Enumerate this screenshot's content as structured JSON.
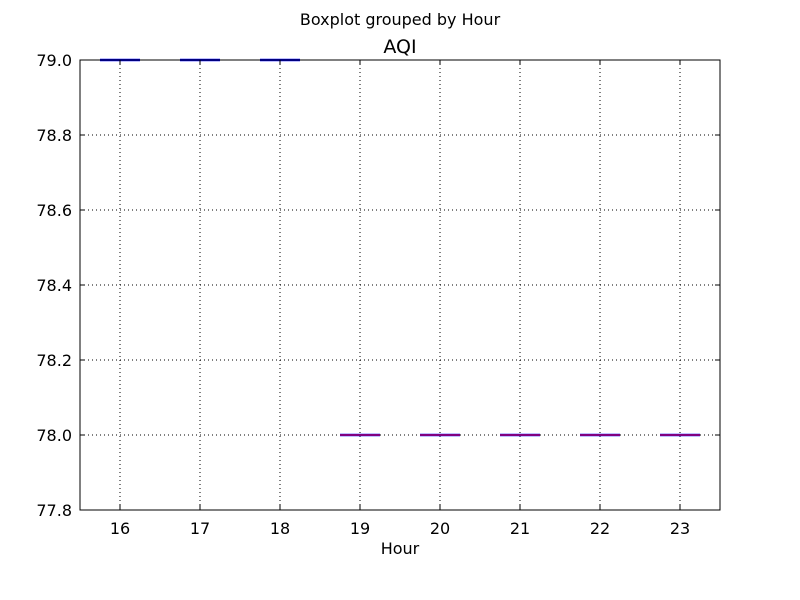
{
  "chart_data": {
    "type": "box",
    "suptitle": "Boxplot grouped by Hour",
    "title": "AQI",
    "xlabel": "Hour",
    "ylabel": "",
    "categories": [
      "16",
      "17",
      "18",
      "19",
      "20",
      "21",
      "22",
      "23"
    ],
    "values": [
      79.0,
      79.0,
      79.0,
      78.0,
      78.0,
      78.0,
      78.0,
      78.0
    ],
    "ylim": [
      77.8,
      79.0
    ],
    "yticks": [
      "77.8",
      "78.0",
      "78.2",
      "78.4",
      "78.6",
      "78.8",
      "79.0"
    ],
    "grid": true,
    "colors": {
      "box": "#0000ff",
      "median": "#ff0000",
      "grid": "#000000"
    }
  }
}
